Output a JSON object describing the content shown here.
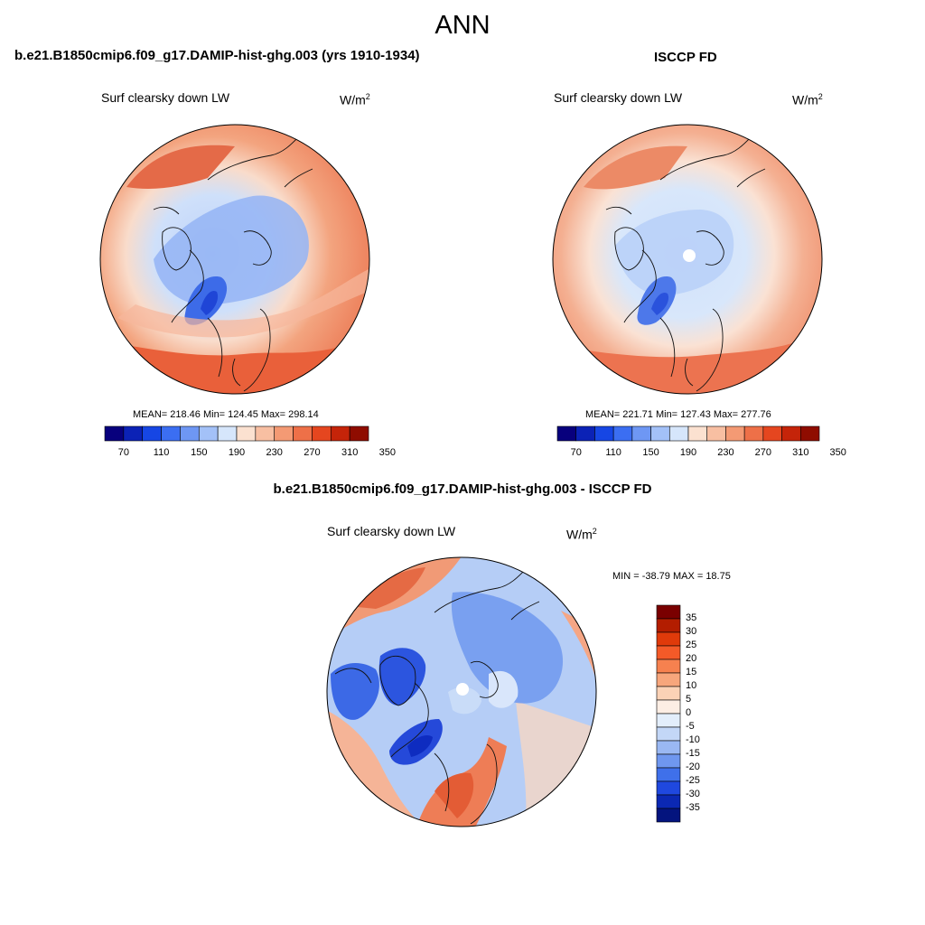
{
  "title": "ANN",
  "panels": [
    {
      "id": "model",
      "header": "b.e21.B1850cmip6.f09_g17.DAMIP-hist-ghg.003 (yrs 1910-1934)",
      "variable": "Surf clearsky down LW",
      "units_base": "W/m",
      "units_exp": "2",
      "stats": "MEAN= 218.46  Min= 124.45  Max= 298.14"
    },
    {
      "id": "obs",
      "header": "ISCCP FD",
      "variable": "Surf clearsky down LW",
      "units_base": "W/m",
      "units_exp": "2",
      "stats": "MEAN= 221.71  Min= 127.43  Max= 277.76"
    },
    {
      "id": "diff",
      "header": "b.e21.B1850cmip6.f09_g17.DAMIP-hist-ghg.003 - ISCCP FD",
      "variable": "Surf clearsky down LW",
      "units_base": "W/m",
      "units_exp": "2",
      "stats": "MIN = -38.79 MAX =  18.75"
    }
  ],
  "colorbar_abs": {
    "ticks": [
      "70",
      "110",
      "150",
      "190",
      "230",
      "270",
      "310",
      "350"
    ],
    "colors": [
      "#08007d",
      "#0b22b6",
      "#1646e4",
      "#3b6ef2",
      "#6e97f4",
      "#a3c1f8",
      "#d6e6fb",
      "#fbe1d0",
      "#f8bfa2",
      "#f49a74",
      "#ee7048",
      "#e5461f",
      "#c52409",
      "#8f0c00"
    ]
  },
  "colorbar_diff": {
    "ticks": [
      "35",
      "30",
      "25",
      "20",
      "15",
      "10",
      "5",
      "0",
      "-5",
      "-10",
      "-15",
      "-20",
      "-25",
      "-30",
      "-35"
    ],
    "colors": [
      "#7a0000",
      "#b31d00",
      "#e03a0a",
      "#f45a28",
      "#f6814f",
      "#f7a67c",
      "#fbd2b6",
      "#fdeee4",
      "#e3eefb",
      "#c3d7f7",
      "#9ab8f3",
      "#6f97ef",
      "#3f70ea",
      "#1f48df",
      "#0b28b3",
      "#04147e"
    ]
  }
}
